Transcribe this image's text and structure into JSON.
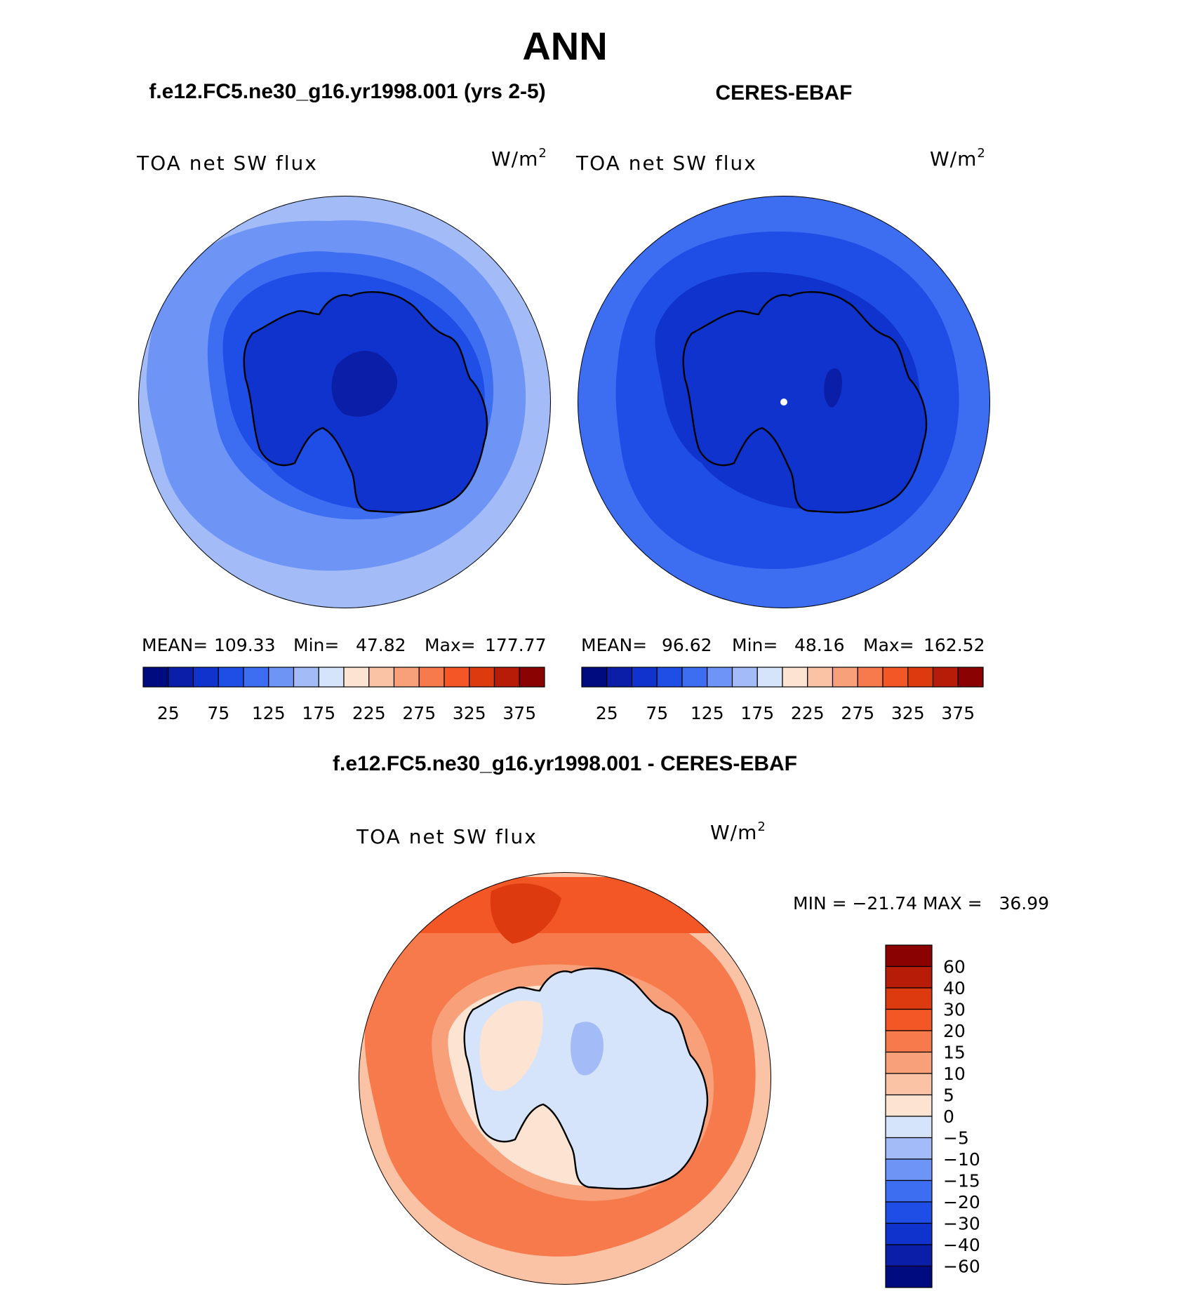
{
  "page_title": "ANN",
  "panels": [
    {
      "header": "f.e12.FC5.ne30_g16.yr1998.001 (yrs 2-5)",
      "variable": "TOA net SW flux",
      "units": "W/m",
      "units_sup": "2",
      "stats": {
        "mean_label": "MEAN=",
        "mean": "109.33",
        "min_label": "Min=",
        "min": "47.82",
        "max_label": "Max=",
        "max": "177.77"
      }
    },
    {
      "header": "CERES-EBAF",
      "variable": "TOA net SW flux",
      "units": "W/m",
      "units_sup": "2",
      "stats": {
        "mean_label": "MEAN=",
        "mean": "96.62",
        "min_label": "Min=",
        "min": "48.16",
        "max_label": "Max=",
        "max": "162.52"
      }
    }
  ],
  "abs_colorbar": {
    "colors": [
      "#000b80",
      "#0a1ea8",
      "#0f33cc",
      "#1f4ee6",
      "#3d6ef2",
      "#6e94f5",
      "#a3bcf7",
      "#d6e4fb",
      "#fde3d2",
      "#fbc3a6",
      "#f8a07a",
      "#f67a4c",
      "#f25725",
      "#de3a10",
      "#b71c08",
      "#8a0202"
    ],
    "tick_labels": [
      "25",
      "75",
      "125",
      "175",
      "225",
      "275",
      "325",
      "375"
    ]
  },
  "diff_panel": {
    "header": "f.e12.FC5.ne30_g16.yr1998.001 - CERES-EBAF",
    "variable": "TOA net SW flux",
    "units": "W/m",
    "units_sup": "2",
    "minmax_text": "MIN = −21.74 MAX =   36.99"
  },
  "diff_colorbar": {
    "colors_top_to_bottom": [
      "#8a0202",
      "#b71c08",
      "#de3a10",
      "#f25725",
      "#f67a4c",
      "#f8a07a",
      "#fbc3a6",
      "#fde3d2",
      "#d6e4fb",
      "#a3bcf7",
      "#6e94f5",
      "#3d6ef2",
      "#1f4ee6",
      "#0f33cc",
      "#0a1ea8",
      "#000b80"
    ],
    "tick_labels": [
      "60",
      "40",
      "30",
      "20",
      "15",
      "10",
      "5",
      "0",
      "−5",
      "−10",
      "−15",
      "−20",
      "−30",
      "−40",
      "−60"
    ]
  },
  "map_colors": {
    "model": [
      "#a3bcf7",
      "#6e94f5",
      "#3d6ef2",
      "#1f4ee6",
      "#0f33cc",
      "#0a1ea8"
    ],
    "obs": [
      "#3d6ef2",
      "#1f4ee6",
      "#0f33cc",
      "#0a1ea8"
    ],
    "diff": [
      "#fde3d2",
      "#fbc3a6",
      "#f8a07a",
      "#f67a4c",
      "#f25725",
      "#de3a10"
    ],
    "diff_land": [
      "#fde3d2",
      "#d6e4fb",
      "#a3bcf7"
    ]
  }
}
